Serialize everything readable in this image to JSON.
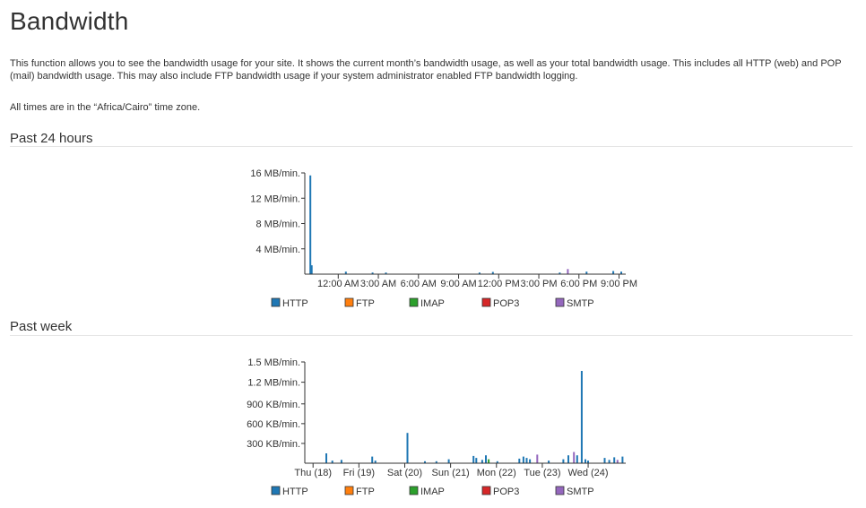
{
  "page": {
    "title": "Bandwidth",
    "description": "This function allows you to see the bandwidth usage for your site. It shows the current month’s bandwidth usage, as well as your total bandwidth usage. This includes all HTTP (web) and POP (mail) bandwidth usage. This may also include FTP bandwidth usage if your system administrator enabled FTP bandwidth logging.",
    "timezone_note": "All times are in the “Africa/Cairo” time zone."
  },
  "sections": {
    "past24": {
      "heading": "Past 24 hours"
    },
    "pastweek": {
      "heading": "Past week"
    }
  },
  "legend_colors": {
    "HTTP": "#1f77b4",
    "FTP": "#ff7f0e",
    "IMAP": "#2ca02c",
    "POP3": "#d62728",
    "SMTP": "#9467bd"
  },
  "chart_data": [
    {
      "type": "bar",
      "title": "",
      "xlabel": "",
      "ylabel": "",
      "unit": "MB/min.",
      "ylim": [
        0,
        16
      ],
      "xlim": [
        0,
        24
      ],
      "yticks": [
        {
          "value": 4,
          "label": "4 MB/min."
        },
        {
          "value": 8,
          "label": "8 MB/min."
        },
        {
          "value": 12,
          "label": "12 MB/min."
        },
        {
          "value": 16,
          "label": "16 MB/min."
        }
      ],
      "xticks": [
        {
          "value": 2.5,
          "label": "12:00 AM"
        },
        {
          "value": 5.5,
          "label": "3:00 AM"
        },
        {
          "value": 8.5,
          "label": "6:00 AM"
        },
        {
          "value": 11.5,
          "label": "9:00 AM"
        },
        {
          "value": 14.5,
          "label": "12:00 PM"
        },
        {
          "value": 17.5,
          "label": "3:00 PM"
        },
        {
          "value": 20.5,
          "label": "6:00 PM"
        },
        {
          "value": 23.5,
          "label": "9:00 PM"
        }
      ],
      "legend": [
        "HTTP",
        "FTP",
        "IMAP",
        "POP3",
        "SMTP"
      ],
      "legend_placement": "bottom",
      "grid": false,
      "bars": [
        {
          "x": 0.35,
          "value": 15.6,
          "series": "HTTP"
        },
        {
          "x": 0.45,
          "value": 1.4,
          "series": "HTTP"
        },
        {
          "x": 3.0,
          "value": 0.4,
          "series": "HTTP"
        },
        {
          "x": 5.0,
          "value": 0.25,
          "series": "HTTP"
        },
        {
          "x": 6.0,
          "value": 0.25,
          "series": "HTTP"
        },
        {
          "x": 13.0,
          "value": 0.25,
          "series": "HTTP"
        },
        {
          "x": 14.0,
          "value": 0.35,
          "series": "HTTP"
        },
        {
          "x": 19.0,
          "value": 0.25,
          "series": "HTTP"
        },
        {
          "x": 19.6,
          "value": 0.8,
          "series": "SMTP"
        },
        {
          "x": 21.0,
          "value": 0.4,
          "series": "HTTP"
        },
        {
          "x": 23.0,
          "value": 0.5,
          "series": "HTTP"
        },
        {
          "x": 23.6,
          "value": 0.4,
          "series": "HTTP"
        }
      ]
    },
    {
      "type": "bar",
      "title": "",
      "xlabel": "",
      "ylabel": "",
      "unit": "KB/min.",
      "ylim": [
        0,
        1536
      ],
      "xlim": [
        0,
        7
      ],
      "yticks": [
        {
          "value": 300,
          "label": "300 KB/min."
        },
        {
          "value": 600,
          "label": "600 KB/min."
        },
        {
          "value": 900,
          "label": "900 KB/min."
        },
        {
          "value": 1228.8,
          "label": "1.2 MB/min."
        },
        {
          "value": 1536,
          "label": "1.5 MB/min."
        }
      ],
      "xticks": [
        {
          "value": 0.18,
          "label": "Thu (18)"
        },
        {
          "value": 1.18,
          "label": "Fri (19)"
        },
        {
          "value": 2.18,
          "label": "Sat (20)"
        },
        {
          "value": 3.18,
          "label": "Sun (21)"
        },
        {
          "value": 4.18,
          "label": "Mon (22)"
        },
        {
          "value": 5.18,
          "label": "Tue (23)"
        },
        {
          "value": 6.18,
          "label": "Wed (24)"
        }
      ],
      "legend": [
        "HTTP",
        "FTP",
        "IMAP",
        "POP3",
        "SMTP"
      ],
      "legend_placement": "bottom",
      "grid": false,
      "bars": [
        {
          "x": 0.45,
          "value": 150,
          "series": "HTTP"
        },
        {
          "x": 0.58,
          "value": 40,
          "series": "HTTP"
        },
        {
          "x": 0.78,
          "value": 50,
          "series": "HTTP"
        },
        {
          "x": 1.45,
          "value": 100,
          "series": "HTTP"
        },
        {
          "x": 1.52,
          "value": 40,
          "series": "HTTP"
        },
        {
          "x": 2.22,
          "value": 460,
          "series": "HTTP"
        },
        {
          "x": 2.6,
          "value": 30,
          "series": "HTTP"
        },
        {
          "x": 2.85,
          "value": 30,
          "series": "HTTP"
        },
        {
          "x": 3.12,
          "value": 60,
          "series": "HTTP"
        },
        {
          "x": 3.66,
          "value": 110,
          "series": "HTTP"
        },
        {
          "x": 3.72,
          "value": 80,
          "series": "HTTP"
        },
        {
          "x": 3.85,
          "value": 50,
          "series": "HTTP"
        },
        {
          "x": 3.93,
          "value": 120,
          "series": "HTTP"
        },
        {
          "x": 3.99,
          "value": 60,
          "series": "IMAP"
        },
        {
          "x": 4.18,
          "value": 30,
          "series": "HTTP"
        },
        {
          "x": 4.66,
          "value": 70,
          "series": "HTTP"
        },
        {
          "x": 4.75,
          "value": 100,
          "series": "HTTP"
        },
        {
          "x": 4.82,
          "value": 80,
          "series": "HTTP"
        },
        {
          "x": 4.89,
          "value": 60,
          "series": "HTTP"
        },
        {
          "x": 5.05,
          "value": 130,
          "series": "SMTP"
        },
        {
          "x": 5.3,
          "value": 40,
          "series": "HTTP"
        },
        {
          "x": 5.62,
          "value": 60,
          "series": "HTTP"
        },
        {
          "x": 5.73,
          "value": 120,
          "series": "HTTP"
        },
        {
          "x": 5.85,
          "value": 170,
          "series": "SMTP"
        },
        {
          "x": 5.92,
          "value": 120,
          "series": "HTTP"
        },
        {
          "x": 6.02,
          "value": 1400,
          "series": "HTTP"
        },
        {
          "x": 6.1,
          "value": 60,
          "series": "HTTP"
        },
        {
          "x": 6.16,
          "value": 40,
          "series": "HTTP"
        },
        {
          "x": 6.52,
          "value": 80,
          "series": "HTTP"
        },
        {
          "x": 6.62,
          "value": 50,
          "series": "HTTP"
        },
        {
          "x": 6.73,
          "value": 90,
          "series": "HTTP"
        },
        {
          "x": 6.8,
          "value": 50,
          "series": "SMTP"
        },
        {
          "x": 6.91,
          "value": 100,
          "series": "HTTP"
        }
      ]
    }
  ]
}
